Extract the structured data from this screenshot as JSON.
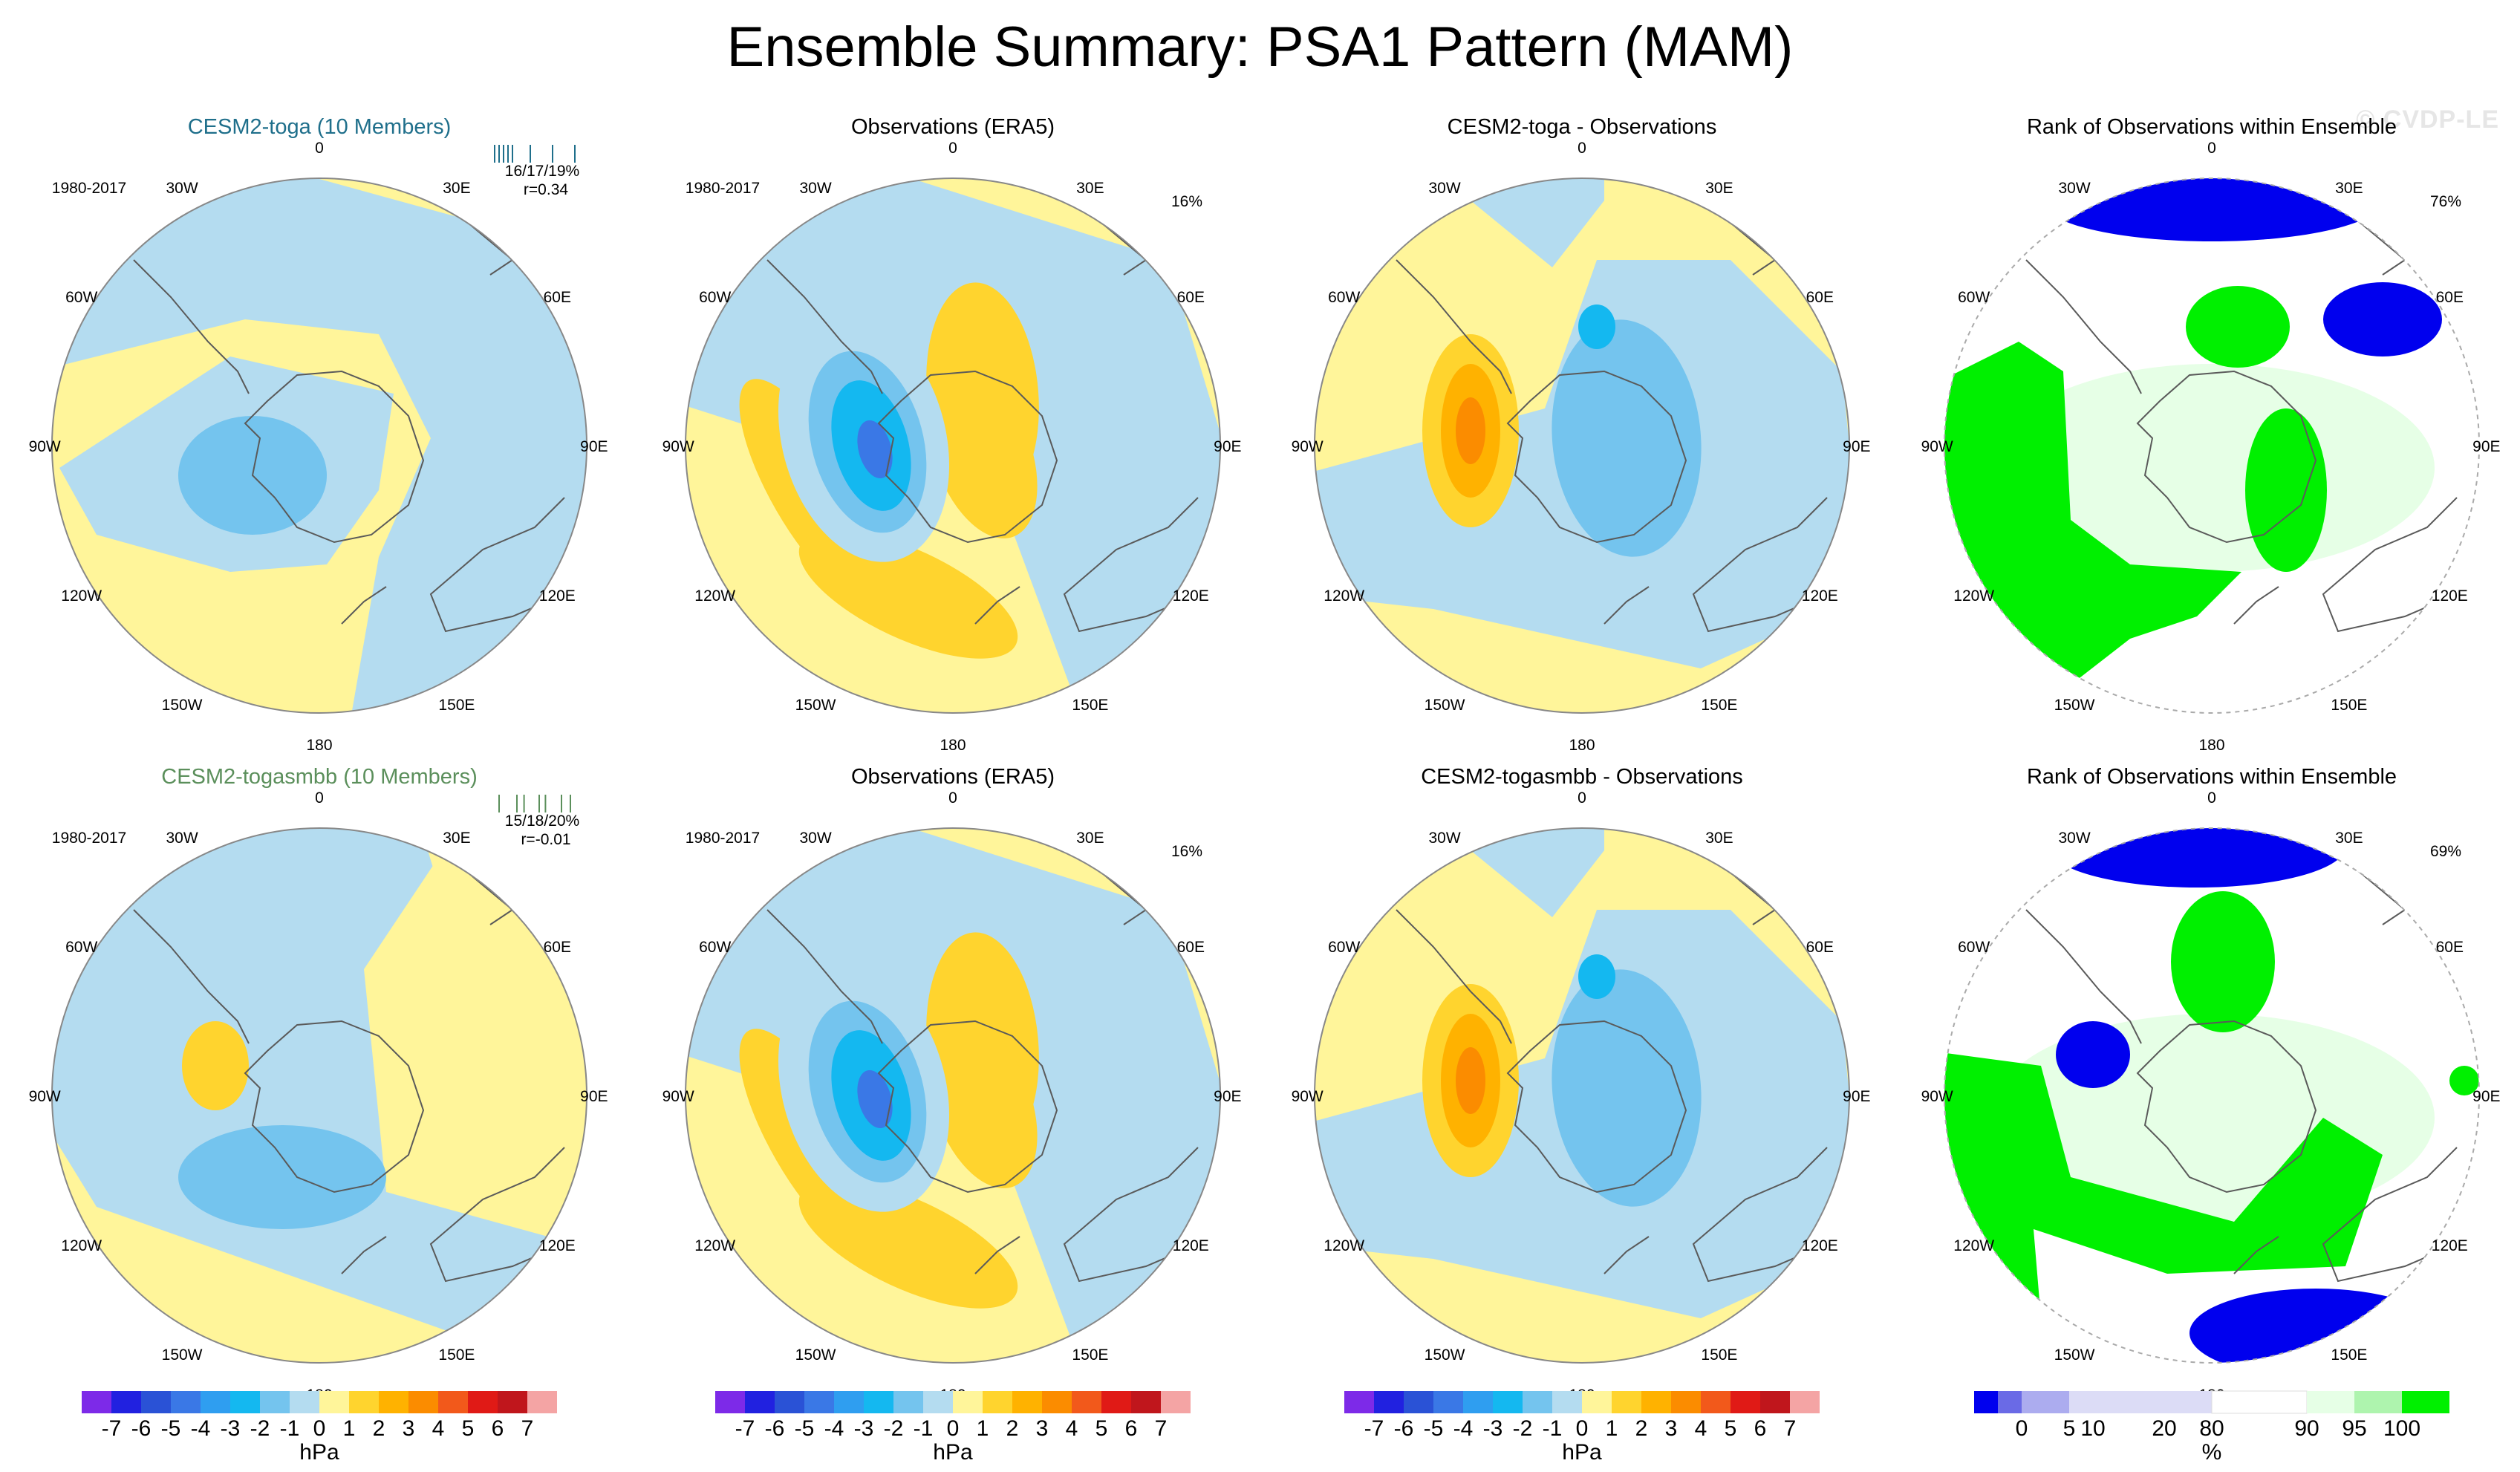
{
  "title": "Ensemble Summary: PSA1 Pattern (MAM)",
  "watermark": "© CVDP-LE",
  "colors": {
    "hpa_levels": [
      "#7d2ae8",
      "#2121e0",
      "#2a52d6",
      "#3a78e6",
      "#2f9ef0",
      "#14b8f0",
      "#74c4ee",
      "#b4dcf0",
      "#fff59a",
      "#ffd42e",
      "#ffb200",
      "#fb8c00",
      "#f2591b",
      "#e01a16",
      "#c0161c",
      "#f4a4a4"
    ],
    "rank_levels": [
      "#0000ee",
      "#6a6ae6",
      "#acacef",
      "#dcdcf6",
      "#ffffff",
      "#e6ffe6",
      "#aef4ae",
      "#00f000"
    ],
    "land_outline": "#5a5a5a",
    "title_toga": "#1f6f8b",
    "title_togasmbb": "#5b8f5b"
  },
  "longitude_labels": [
    "0",
    "30E",
    "60E",
    "90E",
    "120E",
    "150E",
    "180",
    "150W",
    "120W",
    "90W",
    "60W",
    "30W"
  ],
  "panels": [
    {
      "id": "r1c1",
      "kind": "model",
      "title": "CESM2-toga (10 Members)",
      "title_color": "toga",
      "period": "1980-2017",
      "pct": "16/17/19%",
      "corr": "r=0.34",
      "bias": "low",
      "ticks": [
        0.05,
        0.1,
        0.15,
        0.2,
        0.25,
        0.45,
        0.7,
        0.95
      ]
    },
    {
      "id": "r1c2",
      "kind": "obs",
      "title": "Observations (ERA5)",
      "period": "1980-2017",
      "pct": "16%"
    },
    {
      "id": "r1c3",
      "kind": "diff",
      "title": "CESM2-toga - Observations"
    },
    {
      "id": "r1c4",
      "kind": "rank",
      "title": "Rank of Observations within Ensemble",
      "pct": "76%"
    },
    {
      "id": "r2c1",
      "kind": "model",
      "title": "CESM2-togasmbb (10 Members)",
      "title_color": "togasmbb",
      "period": "1980-2017",
      "pct": "15/18/20%",
      "corr": "r=-0.01",
      "bias": "high",
      "ticks": [
        0.1,
        0.3,
        0.38,
        0.55,
        0.62,
        0.8,
        0.9
      ]
    },
    {
      "id": "r2c2",
      "kind": "obs",
      "title": "Observations (ERA5)",
      "period": "1980-2017",
      "pct": "16%"
    },
    {
      "id": "r2c3",
      "kind": "diff",
      "title": "CESM2-togasmbb - Observations"
    },
    {
      "id": "r2c4",
      "kind": "rank",
      "title": "Rank of Observations within Ensemble",
      "pct": "69%"
    }
  ],
  "colorbars": [
    {
      "kind": "hpa",
      "unit": "hPa",
      "labels": [
        "-7",
        "-6",
        "-5",
        "-4",
        "-3",
        "-2",
        "-1",
        "0",
        "1",
        "2",
        "3",
        "4",
        "5",
        "6",
        "7"
      ]
    },
    {
      "kind": "hpa",
      "unit": "hPa",
      "labels": [
        "-7",
        "-6",
        "-5",
        "-4",
        "-3",
        "-2",
        "-1",
        "0",
        "1",
        "2",
        "3",
        "4",
        "5",
        "6",
        "7"
      ]
    },
    {
      "kind": "hpa",
      "unit": "hPa",
      "labels": [
        "-7",
        "-6",
        "-5",
        "-4",
        "-3",
        "-2",
        "-1",
        "0",
        "1",
        "2",
        "3",
        "4",
        "5",
        "6",
        "7"
      ]
    },
    {
      "kind": "rank",
      "unit": "%",
      "labels": [
        "0",
        "5",
        "10",
        "20",
        "80",
        "90",
        "95",
        "100"
      ]
    }
  ],
  "chart_data": {
    "type": "heatmap",
    "title": "Ensemble Summary: PSA1 Pattern (MAM)",
    "projection": "south polar stereographic",
    "panel_titles": [
      "CESM2-toga (10 Members)",
      "Observations (ERA5)",
      "CESM2-toga - Observations",
      "Rank of Observations within Ensemble",
      "CESM2-togasmbb (10 Members)",
      "Observations (ERA5)",
      "CESM2-togasmbb - Observations",
      "Rank of Observations within Ensemble"
    ],
    "hpa_contour_levels": [
      -7,
      -6,
      -5,
      -4,
      -3,
      -2,
      -1,
      0,
      1,
      2,
      3,
      4,
      5,
      6,
      7
    ],
    "rank_levels_percent": [
      0,
      5,
      10,
      20,
      80,
      90,
      95,
      100
    ],
    "units": [
      "hPa",
      "%"
    ]
  }
}
